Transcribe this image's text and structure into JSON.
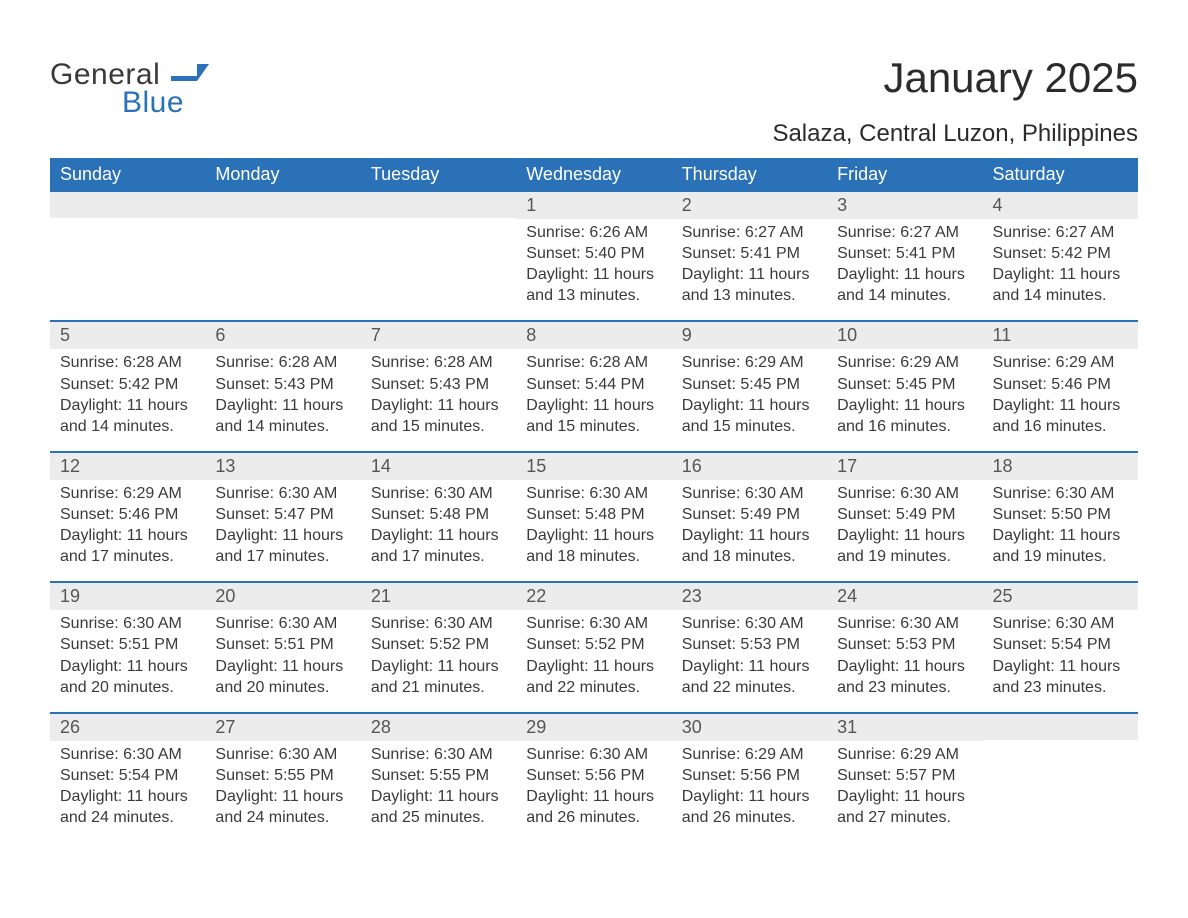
{
  "logo": {
    "word1": "General",
    "word2": "Blue",
    "flag_color": "#2a71b8"
  },
  "title": "January 2025",
  "subtitle": "Salaza, Central Luzon, Philippines",
  "colors": {
    "header_bg": "#2a71b8",
    "header_text": "#ffffff",
    "daynum_bg": "#ececec",
    "week_divider": "#2a71b8",
    "body_text": "#3a3a3a"
  },
  "days_of_week": [
    "Sunday",
    "Monday",
    "Tuesday",
    "Wednesday",
    "Thursday",
    "Friday",
    "Saturday"
  ],
  "weeks": [
    [
      {
        "n": "",
        "sunrise": "",
        "sunset": "",
        "daylight": ""
      },
      {
        "n": "",
        "sunrise": "",
        "sunset": "",
        "daylight": ""
      },
      {
        "n": "",
        "sunrise": "",
        "sunset": "",
        "daylight": ""
      },
      {
        "n": "1",
        "sunrise": "Sunrise: 6:26 AM",
        "sunset": "Sunset: 5:40 PM",
        "daylight": "Daylight: 11 hours and 13 minutes."
      },
      {
        "n": "2",
        "sunrise": "Sunrise: 6:27 AM",
        "sunset": "Sunset: 5:41 PM",
        "daylight": "Daylight: 11 hours and 13 minutes."
      },
      {
        "n": "3",
        "sunrise": "Sunrise: 6:27 AM",
        "sunset": "Sunset: 5:41 PM",
        "daylight": "Daylight: 11 hours and 14 minutes."
      },
      {
        "n": "4",
        "sunrise": "Sunrise: 6:27 AM",
        "sunset": "Sunset: 5:42 PM",
        "daylight": "Daylight: 11 hours and 14 minutes."
      }
    ],
    [
      {
        "n": "5",
        "sunrise": "Sunrise: 6:28 AM",
        "sunset": "Sunset: 5:42 PM",
        "daylight": "Daylight: 11 hours and 14 minutes."
      },
      {
        "n": "6",
        "sunrise": "Sunrise: 6:28 AM",
        "sunset": "Sunset: 5:43 PM",
        "daylight": "Daylight: 11 hours and 14 minutes."
      },
      {
        "n": "7",
        "sunrise": "Sunrise: 6:28 AM",
        "sunset": "Sunset: 5:43 PM",
        "daylight": "Daylight: 11 hours and 15 minutes."
      },
      {
        "n": "8",
        "sunrise": "Sunrise: 6:28 AM",
        "sunset": "Sunset: 5:44 PM",
        "daylight": "Daylight: 11 hours and 15 minutes."
      },
      {
        "n": "9",
        "sunrise": "Sunrise: 6:29 AM",
        "sunset": "Sunset: 5:45 PM",
        "daylight": "Daylight: 11 hours and 15 minutes."
      },
      {
        "n": "10",
        "sunrise": "Sunrise: 6:29 AM",
        "sunset": "Sunset: 5:45 PM",
        "daylight": "Daylight: 11 hours and 16 minutes."
      },
      {
        "n": "11",
        "sunrise": "Sunrise: 6:29 AM",
        "sunset": "Sunset: 5:46 PM",
        "daylight": "Daylight: 11 hours and 16 minutes."
      }
    ],
    [
      {
        "n": "12",
        "sunrise": "Sunrise: 6:29 AM",
        "sunset": "Sunset: 5:46 PM",
        "daylight": "Daylight: 11 hours and 17 minutes."
      },
      {
        "n": "13",
        "sunrise": "Sunrise: 6:30 AM",
        "sunset": "Sunset: 5:47 PM",
        "daylight": "Daylight: 11 hours and 17 minutes."
      },
      {
        "n": "14",
        "sunrise": "Sunrise: 6:30 AM",
        "sunset": "Sunset: 5:48 PM",
        "daylight": "Daylight: 11 hours and 17 minutes."
      },
      {
        "n": "15",
        "sunrise": "Sunrise: 6:30 AM",
        "sunset": "Sunset: 5:48 PM",
        "daylight": "Daylight: 11 hours and 18 minutes."
      },
      {
        "n": "16",
        "sunrise": "Sunrise: 6:30 AM",
        "sunset": "Sunset: 5:49 PM",
        "daylight": "Daylight: 11 hours and 18 minutes."
      },
      {
        "n": "17",
        "sunrise": "Sunrise: 6:30 AM",
        "sunset": "Sunset: 5:49 PM",
        "daylight": "Daylight: 11 hours and 19 minutes."
      },
      {
        "n": "18",
        "sunrise": "Sunrise: 6:30 AM",
        "sunset": "Sunset: 5:50 PM",
        "daylight": "Daylight: 11 hours and 19 minutes."
      }
    ],
    [
      {
        "n": "19",
        "sunrise": "Sunrise: 6:30 AM",
        "sunset": "Sunset: 5:51 PM",
        "daylight": "Daylight: 11 hours and 20 minutes."
      },
      {
        "n": "20",
        "sunrise": "Sunrise: 6:30 AM",
        "sunset": "Sunset: 5:51 PM",
        "daylight": "Daylight: 11 hours and 20 minutes."
      },
      {
        "n": "21",
        "sunrise": "Sunrise: 6:30 AM",
        "sunset": "Sunset: 5:52 PM",
        "daylight": "Daylight: 11 hours and 21 minutes."
      },
      {
        "n": "22",
        "sunrise": "Sunrise: 6:30 AM",
        "sunset": "Sunset: 5:52 PM",
        "daylight": "Daylight: 11 hours and 22 minutes."
      },
      {
        "n": "23",
        "sunrise": "Sunrise: 6:30 AM",
        "sunset": "Sunset: 5:53 PM",
        "daylight": "Daylight: 11 hours and 22 minutes."
      },
      {
        "n": "24",
        "sunrise": "Sunrise: 6:30 AM",
        "sunset": "Sunset: 5:53 PM",
        "daylight": "Daylight: 11 hours and 23 minutes."
      },
      {
        "n": "25",
        "sunrise": "Sunrise: 6:30 AM",
        "sunset": "Sunset: 5:54 PM",
        "daylight": "Daylight: 11 hours and 23 minutes."
      }
    ],
    [
      {
        "n": "26",
        "sunrise": "Sunrise: 6:30 AM",
        "sunset": "Sunset: 5:54 PM",
        "daylight": "Daylight: 11 hours and 24 minutes."
      },
      {
        "n": "27",
        "sunrise": "Sunrise: 6:30 AM",
        "sunset": "Sunset: 5:55 PM",
        "daylight": "Daylight: 11 hours and 24 minutes."
      },
      {
        "n": "28",
        "sunrise": "Sunrise: 6:30 AM",
        "sunset": "Sunset: 5:55 PM",
        "daylight": "Daylight: 11 hours and 25 minutes."
      },
      {
        "n": "29",
        "sunrise": "Sunrise: 6:30 AM",
        "sunset": "Sunset: 5:56 PM",
        "daylight": "Daylight: 11 hours and 26 minutes."
      },
      {
        "n": "30",
        "sunrise": "Sunrise: 6:29 AM",
        "sunset": "Sunset: 5:56 PM",
        "daylight": "Daylight: 11 hours and 26 minutes."
      },
      {
        "n": "31",
        "sunrise": "Sunrise: 6:29 AM",
        "sunset": "Sunset: 5:57 PM",
        "daylight": "Daylight: 11 hours and 27 minutes."
      },
      {
        "n": "",
        "sunrise": "",
        "sunset": "",
        "daylight": ""
      }
    ]
  ]
}
